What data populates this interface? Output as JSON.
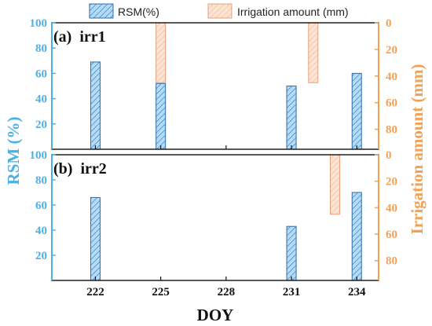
{
  "chart_data": {
    "type": "bar",
    "xlabel": "DOY",
    "ylabel_left": "RSM (%)",
    "ylabel_right": "Irrigation amount (mm)",
    "x_ticks": [
      222,
      225,
      228,
      231,
      234
    ],
    "xlim": [
      220,
      235
    ],
    "left_ylim": [
      0,
      100
    ],
    "left_yticks": [
      20,
      40,
      60,
      80,
      100
    ],
    "right_ylim_inverted": [
      0,
      95
    ],
    "right_yticks": [
      0,
      20,
      40,
      60,
      80
    ],
    "legend": {
      "placement": "top-center",
      "entries": [
        {
          "key": "rsm",
          "label": "RSM(%)"
        },
        {
          "key": "irrigation",
          "label": "Irrigation amount (mm)"
        }
      ]
    },
    "colors": {
      "rsm_fill": "#b7dbf5",
      "rsm_hatch": "#3b8fd6",
      "rsm_edge": "#2e6da8",
      "irr_fill": "#fde5d6",
      "irr_hatch": "#f0b894",
      "irr_edge": "#e8a07a",
      "left_axis": "#4bb0e6",
      "right_axis": "#f2a155"
    },
    "panels": [
      {
        "label_prefix": "(a)",
        "label_name": "irr1",
        "series": [
          {
            "key": "rsm",
            "x": [
              222,
              225,
              231,
              234
            ],
            "values": [
              69,
              52,
              50,
              60
            ]
          },
          {
            "key": "irrigation",
            "x": [
              225,
              232
            ],
            "values": [
              45,
              45
            ]
          }
        ]
      },
      {
        "label_prefix": "(b)",
        "label_name": "irr2",
        "series": [
          {
            "key": "rsm",
            "x": [
              222,
              231,
              234
            ],
            "values": [
              66,
              43,
              70
            ]
          },
          {
            "key": "irrigation",
            "x": [
              233
            ],
            "values": [
              45
            ]
          }
        ]
      }
    ]
  }
}
